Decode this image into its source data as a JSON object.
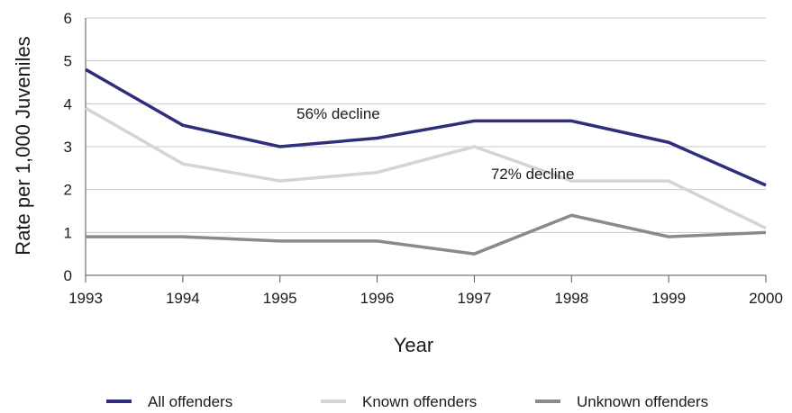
{
  "chart_data": {
    "type": "line",
    "x": [
      1993,
      1994,
      1995,
      1996,
      1997,
      1998,
      1999,
      2000
    ],
    "xlabel": "Year",
    "ylabel": "Rate per 1,000 Juveniles",
    "ylim": [
      0,
      6
    ],
    "yticks": [
      0,
      1,
      2,
      3,
      4,
      5,
      6
    ],
    "grid": "horizontal",
    "legend_position": "bottom",
    "series": [
      {
        "name": "All offenders",
        "color": "#2e2e7a",
        "values": [
          4.8,
          3.5,
          3.0,
          3.2,
          3.6,
          3.6,
          3.1,
          2.1
        ]
      },
      {
        "name": "Known offenders",
        "color": "#d4d4d4",
        "values": [
          3.9,
          2.6,
          2.2,
          2.4,
          3.0,
          2.2,
          2.2,
          1.1
        ]
      },
      {
        "name": "Unknown offenders",
        "color": "#8a8a8a",
        "values": [
          0.9,
          0.9,
          0.8,
          0.8,
          0.5,
          1.4,
          0.9,
          1.0
        ]
      }
    ],
    "annotations": [
      {
        "text": "56% decline",
        "x": 1995.6,
        "y": 3.65
      },
      {
        "text": "72% decline",
        "x": 1997.6,
        "y": 2.25
      }
    ]
  }
}
